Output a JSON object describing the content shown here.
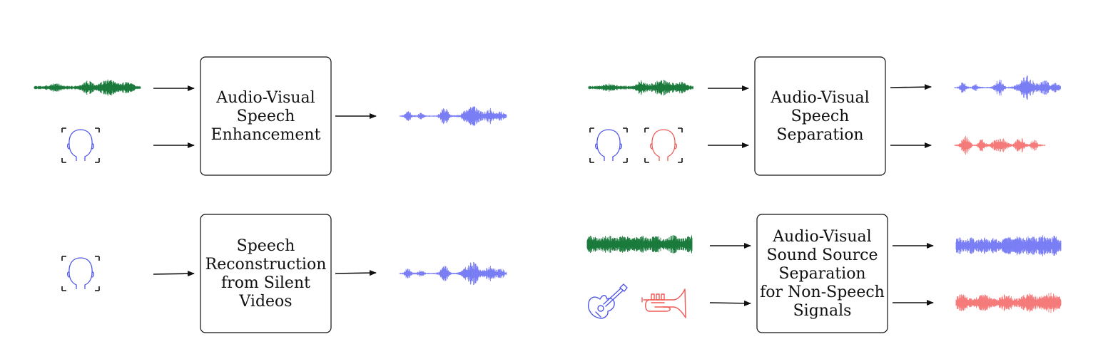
{
  "panels": [
    {
      "id": "ave",
      "label_lines": [
        "Audio-Visual",
        "Speech",
        "Enhancement"
      ],
      "inputs": [
        "noisy-waveform",
        "face"
      ],
      "outputs": [
        "clean-waveform"
      ]
    },
    {
      "id": "avss",
      "label_lines": [
        "Audio-Visual",
        "Speech",
        "Separation"
      ],
      "inputs": [
        "mixed-waveform",
        "two-faces"
      ],
      "outputs": [
        "speaker-1-waveform",
        "speaker-2-waveform"
      ]
    },
    {
      "id": "srsv",
      "label_lines": [
        "Speech",
        "Reconstruction",
        "from Silent",
        "Videos"
      ],
      "inputs": [
        "face"
      ],
      "outputs": [
        "reconstructed-waveform"
      ]
    },
    {
      "id": "avsss",
      "label_lines": [
        "Audio-Visual",
        "Sound Source",
        "Separation",
        "for Non-Speech",
        "Signals"
      ],
      "inputs": [
        "mixed-music-waveform",
        "instruments"
      ],
      "outputs": [
        "guitar-waveform",
        "trumpet-waveform"
      ]
    }
  ],
  "icons": [
    "face-icon",
    "guitar-icon",
    "trumpet-icon",
    "waveform-icon",
    "arrow-icon"
  ],
  "colors": {
    "mixture": "#1a7a3c",
    "source_blue": "#7a7ef5",
    "source_red": "#f57a7a",
    "face_blue": "#4f57e6",
    "face_red": "#ee5a55",
    "ink": "#111111"
  }
}
